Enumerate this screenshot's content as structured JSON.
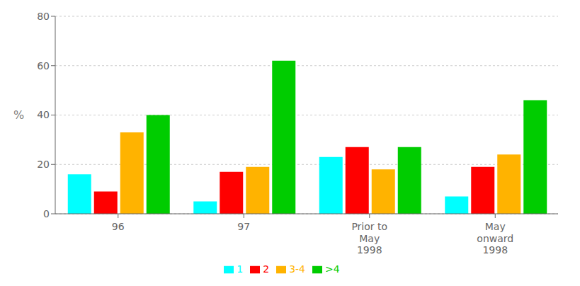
{
  "chart_data": {
    "type": "bar",
    "categories": [
      "96",
      "97",
      "Prior to\nMay\n1998",
      "May\nonward\n1998"
    ],
    "series": [
      {
        "name": "1",
        "color": "#00FFFF",
        "values": [
          16,
          5,
          23,
          7
        ]
      },
      {
        "name": "2",
        "color": "#FF0000",
        "values": [
          9,
          17,
          27,
          19
        ]
      },
      {
        "name": "3-4",
        "color": "#FFB300",
        "values": [
          33,
          19,
          18,
          24
        ]
      },
      {
        "name": ">4",
        "color": "#00CC00",
        "values": [
          40,
          62,
          27,
          46
        ]
      }
    ],
    "ylabel": "%",
    "ylim": [
      0,
      80
    ],
    "yticks": [
      0,
      20,
      40,
      60,
      80
    ],
    "grid": true,
    "legend": "bottom"
  }
}
